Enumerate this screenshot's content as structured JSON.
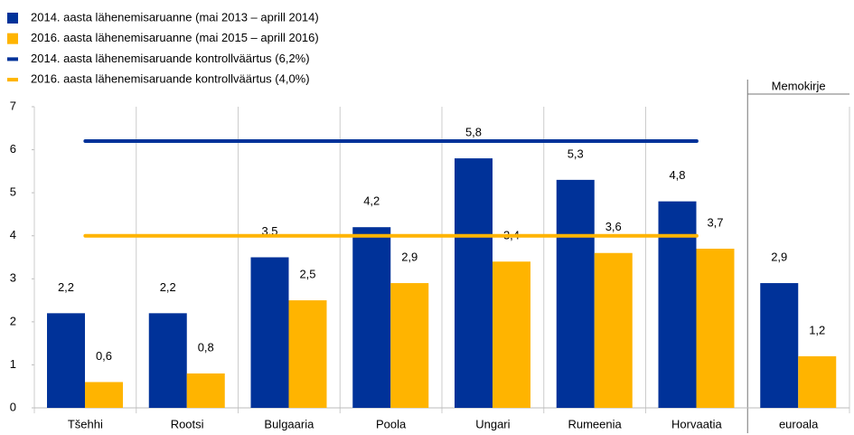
{
  "chart_data": {
    "type": "bar",
    "categories": [
      "Tšehhi",
      "Rootsi",
      "Bulgaaria",
      "Poola",
      "Ungari",
      "Rumeenia",
      "Horvaatia",
      "euroala"
    ],
    "series": [
      {
        "name": "2014. aasta lähenemisaruanne (mai 2013 – aprill 2014)",
        "color": "#003299",
        "values": [
          2.2,
          2.2,
          3.5,
          4.2,
          5.8,
          5.3,
          4.8,
          2.9
        ],
        "value_labels": [
          "2,2",
          "2,2",
          "3,5",
          "4,2",
          "5,8",
          "5,3",
          "4,8",
          "2,9"
        ]
      },
      {
        "name": "2016. aasta lähenemisaruanne (mai 2015 – aprill 2016)",
        "color": "#ffb400",
        "values": [
          0.6,
          0.8,
          2.5,
          2.9,
          3.4,
          3.6,
          3.7,
          1.2
        ],
        "value_labels": [
          "0,6",
          "0,8",
          "2,5",
          "2,9",
          "3,4",
          "3,6",
          "3,7",
          "1,2"
        ]
      }
    ],
    "reference_lines": [
      {
        "name": "2014. aasta lähenemisaruande kontrollväärtus (6,2%)",
        "value": 6.2,
        "color": "#003299"
      },
      {
        "name": "2016. aasta lähenemisaruande kontrollväärtus (4,0%)",
        "value": 4.0,
        "color": "#ffb400"
      }
    ],
    "annotations": [
      "Memokirje"
    ],
    "ylim": [
      0,
      7
    ],
    "yticks": [
      0,
      1,
      2,
      3,
      4,
      5,
      6,
      7
    ],
    "legend": "top-left"
  }
}
